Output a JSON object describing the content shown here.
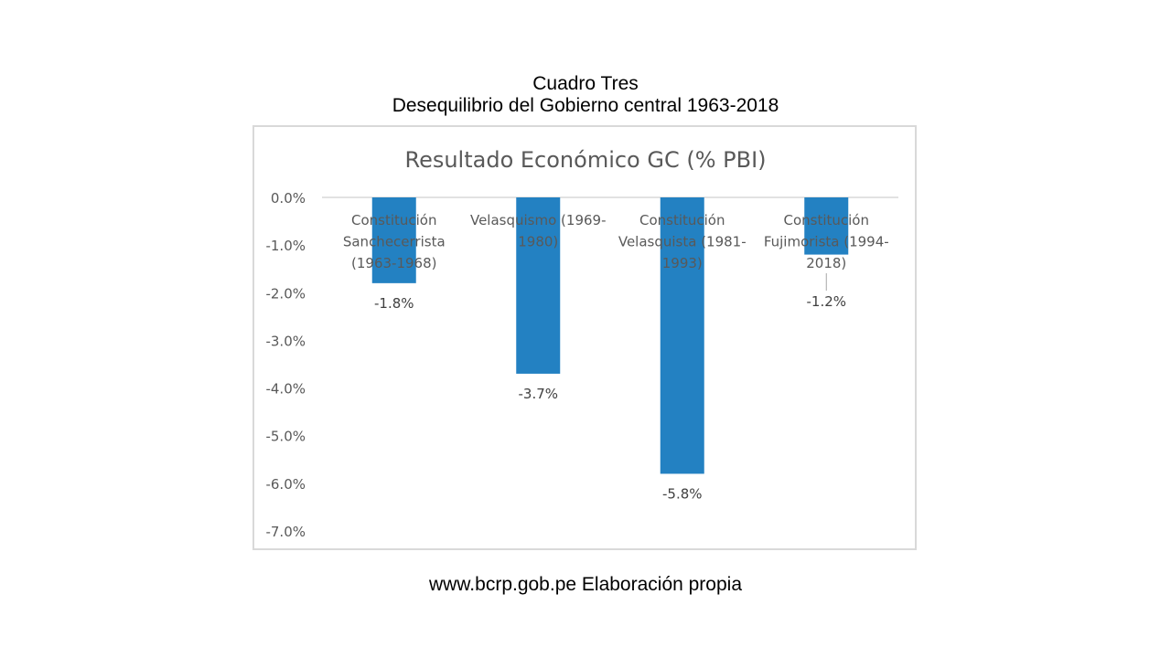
{
  "slide": {
    "title_line1": "Cuadro Tres",
    "title_line2": "Desequilibrio del Gobierno central 1963-2018",
    "footer": "www.bcrp.gob.pe Elaboración propia"
  },
  "chart_data": {
    "type": "bar",
    "title": "Resultado Económico GC (% PBI)",
    "categories": [
      [
        "Constitución",
        "Sanchecerrista",
        "(1963-1968)"
      ],
      [
        "Velasquismo (1969-",
        "1980)"
      ],
      [
        "Constitución",
        "Velasquista (1981-",
        "1993)"
      ],
      [
        "Constitución",
        "Fujimorista (1994-",
        "2018)"
      ]
    ],
    "values": [
      -1.8,
      -3.7,
      -5.8,
      -1.2
    ],
    "value_labels": [
      "-1.8%",
      "-3.7%",
      "-5.8%",
      "-1.2%"
    ],
    "y_ticks": [
      "0.0%",
      "-1.0%",
      "-2.0%",
      "-3.0%",
      "-4.0%",
      "-5.0%",
      "-6.0%",
      "-7.0%"
    ],
    "ylim": [
      -7,
      0
    ],
    "bar_color": "#2381c2",
    "grid": false
  }
}
